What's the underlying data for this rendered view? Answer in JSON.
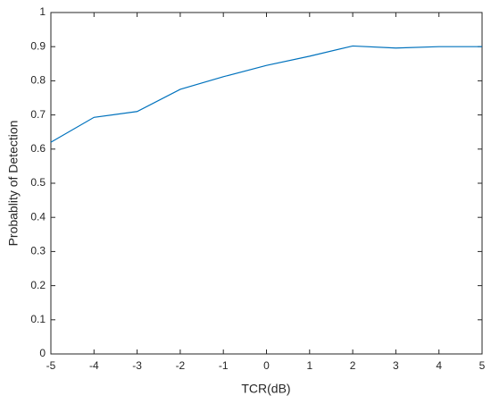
{
  "chart_data": {
    "type": "line",
    "xlabel": "TCR(dB)",
    "ylabel": "Probablity of Detection",
    "x": [
      -5,
      -4,
      -3,
      -2,
      -1,
      0,
      1,
      2,
      3,
      4,
      5
    ],
    "values": [
      0.62,
      0.693,
      0.71,
      0.775,
      0.812,
      0.845,
      0.872,
      0.902,
      0.896,
      0.9,
      0.9
    ],
    "color": "#0072bd",
    "xlim": [
      -5,
      5
    ],
    "xticks": [
      -5,
      -4,
      -3,
      -2,
      -1,
      0,
      1,
      2,
      3,
      4,
      5
    ],
    "ylim": [
      0,
      1
    ],
    "yticks": [
      0,
      0.1,
      0.2,
      0.3,
      0.4,
      0.5,
      0.6,
      0.7,
      0.8,
      0.9,
      1
    ],
    "grid": false
  }
}
